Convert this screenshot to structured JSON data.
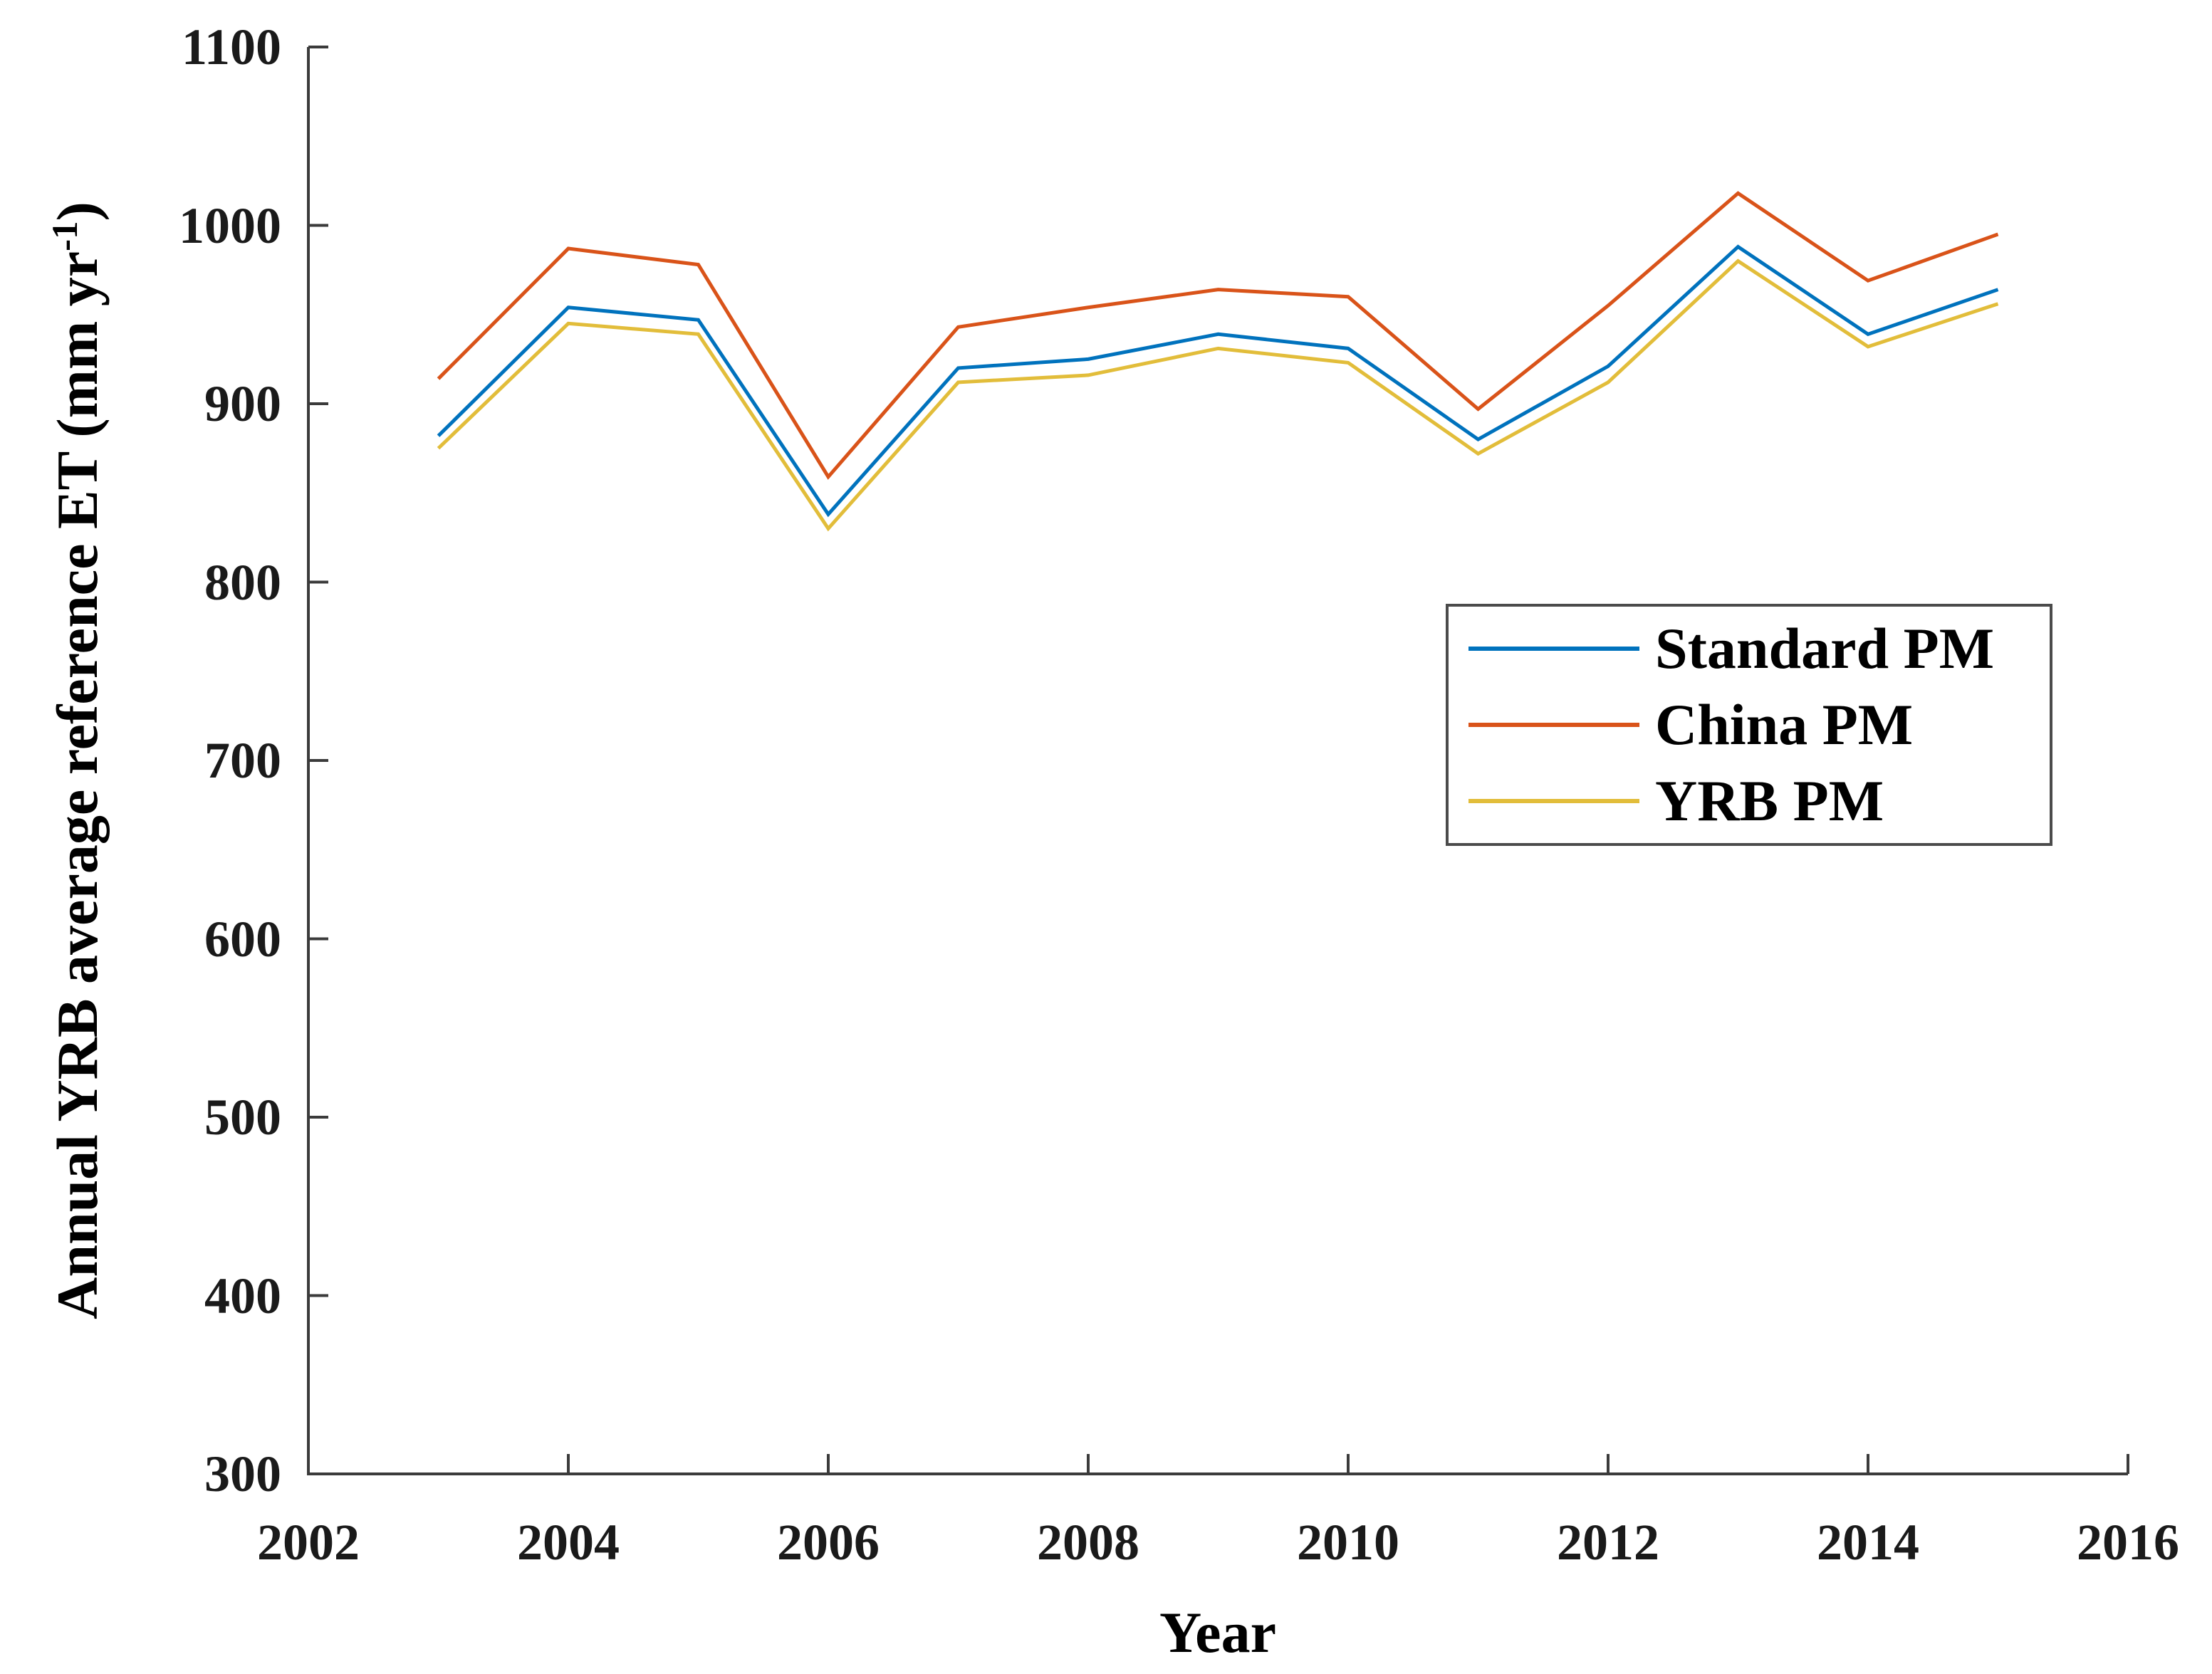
{
  "figure": {
    "background_color": "#ffffff",
    "axis_line_color": "#3b3b3b",
    "tick_label_color": "#1a1a1a",
    "text_color": "#000000"
  },
  "chart_data": {
    "type": "line",
    "title": "",
    "xlabel": "Year",
    "ylabel": "Annual YRB average reference ET  (mm yr⁻¹)",
    "ylabel_main": "Annual YRB average reference ET  (mm yr",
    "ylabel_sup": "-1",
    "ylabel_suffix": ")",
    "xlim": [
      2002,
      2016
    ],
    "ylim": [
      300,
      1100
    ],
    "xticks": [
      "2002",
      "2004",
      "2006",
      "2008",
      "2010",
      "2012",
      "2014",
      "2016"
    ],
    "xtick_values": [
      2002,
      2004,
      2006,
      2008,
      2010,
      2012,
      2014,
      2016
    ],
    "yticks": [
      "300",
      "400",
      "500",
      "600",
      "700",
      "800",
      "900",
      "1000",
      "1100"
    ],
    "ytick_values": [
      300,
      400,
      500,
      600,
      700,
      800,
      900,
      1000,
      1100
    ],
    "grid": false,
    "legend_position": "middle-right",
    "legend_entries": [
      "Standard PM",
      "China PM",
      "YRB PM"
    ],
    "x": [
      2003,
      2004,
      2005,
      2006,
      2007,
      2008,
      2009,
      2010,
      2011,
      2012,
      2013,
      2014,
      2015
    ],
    "series": [
      {
        "name": "Standard PM",
        "color": "#0072BD",
        "values": [
          882,
          954,
          947,
          838,
          920,
          925,
          939,
          931,
          880,
          921,
          988,
          939,
          964
        ]
      },
      {
        "name": "China PM",
        "color": "#D95319",
        "values": [
          914,
          987,
          978,
          859,
          943,
          954,
          964,
          960,
          897,
          955,
          1018,
          969,
          995
        ]
      },
      {
        "name": "YRB PM",
        "color": "#E2BD3A",
        "values": [
          875,
          945,
          939,
          830,
          912,
          916,
          931,
          923,
          872,
          912,
          980,
          932,
          956
        ]
      }
    ]
  }
}
